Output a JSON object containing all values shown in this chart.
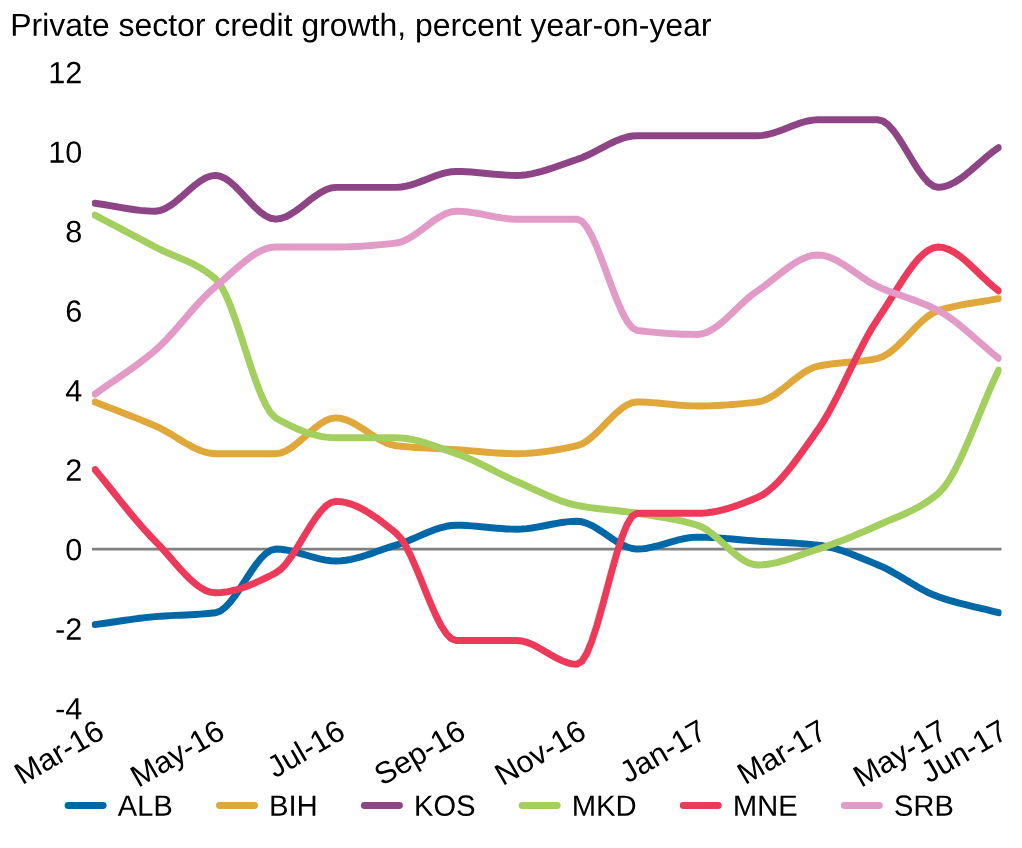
{
  "chart_data": {
    "type": "line",
    "title": "Private sector credit growth, percent year-on-year",
    "categories": [
      "Mar-16",
      null,
      "May-16",
      null,
      "Jul-16",
      null,
      "Sep-16",
      null,
      "Nov-16",
      null,
      "Jan-17",
      null,
      "Mar-17",
      null,
      "May-17",
      "Jun-17"
    ],
    "series": [
      {
        "name": "ALB",
        "color": "#0068a6",
        "values": [
          -1.9,
          -1.7,
          -1.6,
          0.0,
          -0.3,
          0.1,
          0.6,
          0.5,
          0.7,
          0.0,
          0.3,
          0.2,
          0.1,
          -0.4,
          -1.2,
          -1.6
        ]
      },
      {
        "name": "BIH",
        "color": "#e0a83a",
        "values": [
          3.7,
          3.1,
          2.4,
          2.4,
          3.3,
          2.6,
          2.5,
          2.4,
          2.6,
          3.7,
          3.6,
          3.7,
          4.6,
          4.8,
          6.0,
          6.3
        ]
      },
      {
        "name": "KOS",
        "color": "#8e4585",
        "values": [
          8.7,
          8.5,
          9.4,
          8.3,
          9.1,
          9.1,
          9.5,
          9.4,
          9.8,
          10.4,
          10.4,
          10.4,
          10.8,
          10.8,
          9.1,
          10.1
        ]
      },
      {
        "name": "MKD",
        "color": "#a2cf5e",
        "values": [
          8.4,
          7.6,
          6.8,
          3.3,
          2.8,
          2.8,
          2.4,
          1.7,
          1.1,
          0.9,
          0.6,
          -0.4,
          0.0,
          0.6,
          1.4,
          4.5
        ]
      },
      {
        "name": "MNE",
        "color": "#ee3a5a",
        "values": [
          2.0,
          0.2,
          -1.1,
          -0.6,
          1.2,
          0.4,
          -2.3,
          -2.3,
          -2.9,
          0.9,
          0.9,
          1.3,
          3.0,
          5.8,
          7.6,
          6.5
        ]
      },
      {
        "name": "SRB",
        "color": "#e29ac6",
        "values": [
          3.9,
          5.0,
          6.6,
          7.6,
          7.6,
          7.7,
          8.5,
          8.3,
          8.3,
          5.5,
          5.4,
          6.5,
          7.4,
          6.6,
          6.0,
          4.8
        ]
      }
    ],
    "ylim": [
      -4,
      12
    ],
    "yticks": [
      -4,
      -2,
      0,
      2,
      4,
      6,
      8,
      10,
      12
    ],
    "ref_lines": [
      {
        "axis": "y",
        "value": 0,
        "color": "#808080"
      }
    ],
    "grid": false,
    "legend": "bottom",
    "line_style": "solid",
    "marker": "none"
  }
}
